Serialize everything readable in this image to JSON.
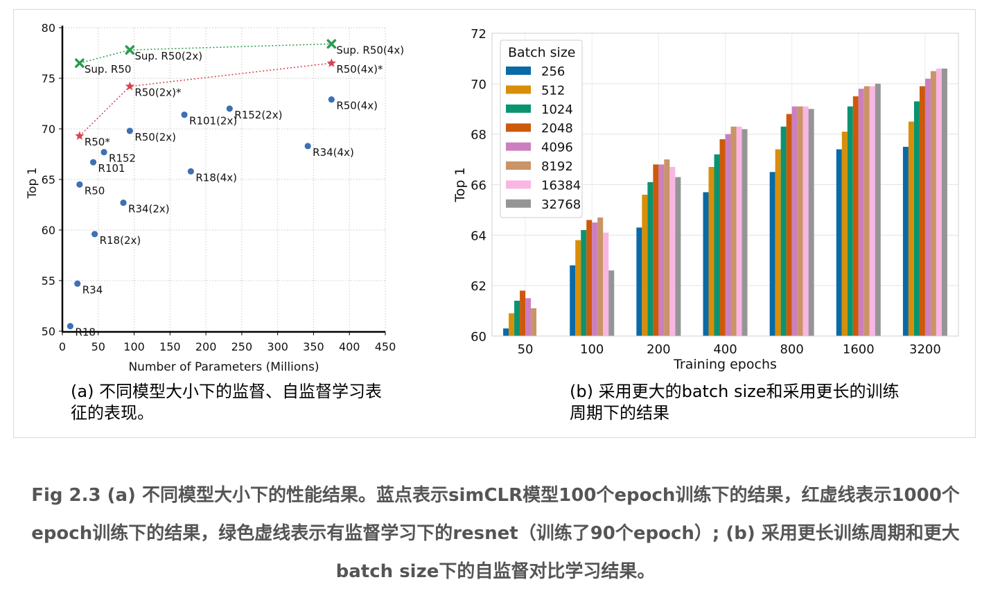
{
  "chart_data": [
    {
      "type": "scatter",
      "xlabel": "Number of Parameters (Millions)",
      "ylabel": "Top 1",
      "xlim": [
        0,
        450
      ],
      "ylim": [
        50,
        80
      ],
      "xticks": [
        0,
        50,
        100,
        150,
        200,
        250,
        300,
        350,
        400,
        450
      ],
      "yticks": [
        50,
        55,
        60,
        65,
        70,
        75,
        80
      ],
      "grid": true,
      "series": [
        {
          "color": "#3f6fb5",
          "marker": "circle",
          "points": [
            {
              "x": 11,
              "y": 50.5,
              "label": "R18"
            },
            {
              "x": 21,
              "y": 54.7,
              "label": "R34"
            },
            {
              "x": 24,
              "y": 64.5,
              "label": "R50"
            },
            {
              "x": 43,
              "y": 66.7,
              "label": "R101"
            },
            {
              "x": 58,
              "y": 67.7,
              "label": "R152"
            },
            {
              "x": 45,
              "y": 59.6,
              "label": "R18(2x)"
            },
            {
              "x": 85,
              "y": 62.7,
              "label": "R34(2x)"
            },
            {
              "x": 94,
              "y": 69.8,
              "label": "R50(2x)"
            },
            {
              "x": 170,
              "y": 71.4,
              "label": "R101(2x)"
            },
            {
              "x": 233,
              "y": 72.0,
              "label": "R152(2x)"
            },
            {
              "x": 179,
              "y": 65.8,
              "label": "R18(4x)"
            },
            {
              "x": 342,
              "y": 68.3,
              "label": "R34(4x)"
            },
            {
              "x": 375,
              "y": 72.9,
              "label": "R50(4x)"
            }
          ]
        },
        {
          "color": "#d9434f",
          "marker": "star",
          "line": "dotted",
          "points": [
            {
              "x": 24,
              "y": 69.3,
              "label": "R50*"
            },
            {
              "x": 94,
              "y": 74.2,
              "label": "R50(2x)*"
            },
            {
              "x": 375,
              "y": 76.5,
              "label": "R50(4x)*"
            }
          ]
        },
        {
          "color": "#2a9d4f",
          "marker": "x",
          "line": "dotted",
          "points": [
            {
              "x": 24,
              "y": 76.5,
              "label": "Sup. R50"
            },
            {
              "x": 94,
              "y": 77.8,
              "label": "Sup. R50(2x)"
            },
            {
              "x": 375,
              "y": 78.4,
              "label": "Sup. R50(4x)"
            }
          ]
        }
      ]
    },
    {
      "type": "bar",
      "xlabel": "Training epochs",
      "ylabel": "Top 1",
      "ylim": [
        60,
        72
      ],
      "yticks": [
        60,
        62,
        64,
        66,
        68,
        70,
        72
      ],
      "grid": true,
      "legend": {
        "title": "Batch size",
        "position": "top-left"
      },
      "categories": [
        "50",
        "100",
        "200",
        "400",
        "800",
        "1600",
        "3200"
      ],
      "series": [
        {
          "name": "256",
          "color": "#0a6aa6",
          "values": [
            60.3,
            62.8,
            64.3,
            65.7,
            66.5,
            67.4,
            67.5
          ]
        },
        {
          "name": "512",
          "color": "#d88e09",
          "values": [
            60.9,
            63.8,
            65.6,
            66.7,
            67.4,
            68.1,
            68.5
          ]
        },
        {
          "name": "1024",
          "color": "#0b9370",
          "values": [
            61.4,
            64.2,
            66.1,
            67.2,
            68.3,
            69.1,
            69.3
          ]
        },
        {
          "name": "2048",
          "color": "#cc5a0c",
          "values": [
            61.8,
            64.6,
            66.8,
            67.8,
            68.8,
            69.5,
            69.9
          ]
        },
        {
          "name": "4096",
          "color": "#cc7fbf",
          "values": [
            61.5,
            64.5,
            66.8,
            68.0,
            69.1,
            69.8,
            70.2
          ]
        },
        {
          "name": "8192",
          "color": "#c99467",
          "values": [
            61.1,
            64.7,
            67.0,
            68.3,
            69.1,
            69.9,
            70.5
          ]
        },
        {
          "name": "16384",
          "color": "#f9b6e2",
          "values": [
            null,
            64.1,
            66.7,
            68.3,
            69.1,
            69.9,
            70.6
          ]
        },
        {
          "name": "32768",
          "color": "#959595",
          "values": [
            null,
            62.6,
            66.3,
            68.2,
            69.0,
            70.0,
            70.6
          ]
        }
      ]
    }
  ],
  "captions": {
    "a": "(a) 不同模型大小下的监督、自监督学习表征的表现。",
    "b": "(b) 采用更大的batch size和采用更长的训练周期下的结果",
    "figure": "Fig 2.3 (a) 不同模型大小下的性能结果。蓝点表示simCLR模型100个epoch训练下的结果，红虚线表示1000个epoch训练下的结果，绿色虚线表示有监督学习下的resnet（训练了90个epoch）; (b) 采用更长训练周期和更大batch size下的自监督对比学习结果。"
  }
}
